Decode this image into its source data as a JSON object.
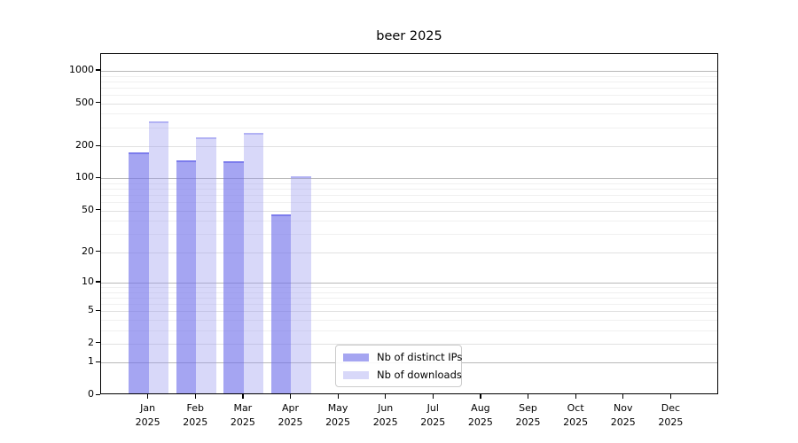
{
  "chart_data": {
    "type": "bar",
    "title": "beer 2025",
    "year_label": "2025",
    "months": [
      "Jan",
      "Feb",
      "Mar",
      "Apr",
      "May",
      "Jun",
      "Jul",
      "Aug",
      "Sep",
      "Oct",
      "Nov",
      "Dec"
    ],
    "categories": [
      "Jan 2025",
      "Feb 2025",
      "Mar 2025",
      "Apr 2025",
      "May 2025",
      "Jun 2025",
      "Jul 2025",
      "Aug 2025",
      "Sep 2025",
      "Oct 2025",
      "Nov 2025",
      "Dec 2025"
    ],
    "series": [
      {
        "name": "Nb of distinct IPs",
        "color": "#a5a5f1",
        "values": [
          170,
          143,
          140,
          44,
          0,
          0,
          0,
          0,
          0,
          0,
          0,
          0
        ]
      },
      {
        "name": "Nb of downloads",
        "color": "#d8d8f9",
        "values": [
          330,
          235,
          255,
          100,
          0,
          0,
          0,
          0,
          0,
          0,
          0,
          0
        ]
      }
    ],
    "y_axis": {
      "scale": "log1p",
      "ticks": [
        0,
        1,
        2,
        5,
        10,
        20,
        50,
        100,
        200,
        500,
        1000
      ],
      "min": 0,
      "max": 1000
    },
    "grid": true,
    "legend_position": "bottom-center",
    "colors": {
      "grid_decade": "#b9b9b9",
      "grid_mid": "#e1e1e1",
      "grid_minor": "#f0f0f0",
      "spine": "#000000"
    }
  }
}
